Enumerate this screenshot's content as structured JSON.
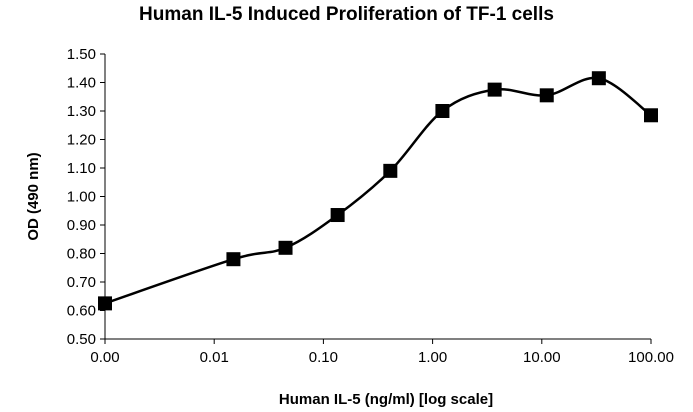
{
  "chart_data": {
    "type": "line",
    "title": "Human IL-5 Induced Proliferation of TF-1 cells",
    "xlabel": "Human IL-5 (ng/ml) [log scale]",
    "ylabel": "OD (490 nm)",
    "x_tick_labels": [
      "0.00",
      "0.01",
      "0.10",
      "1.00",
      "10.00",
      "100.00"
    ],
    "y_tick_labels": [
      "0.50",
      "0.60",
      "0.70",
      "0.80",
      "0.90",
      "1.00",
      "1.10",
      "1.20",
      "1.30",
      "1.40",
      "1.50"
    ],
    "ylim": [
      0.5,
      1.5
    ],
    "x_scale": "log",
    "grid": false,
    "series": [
      {
        "x": [
          0.001,
          0.015,
          0.045,
          0.135,
          0.41,
          1.23,
          3.7,
          11.1,
          33.3,
          100
        ],
        "values": [
          0.625,
          0.78,
          0.82,
          0.935,
          1.09,
          1.3,
          1.375,
          1.355,
          1.415,
          1.285
        ]
      }
    ],
    "colors": {
      "line": "#000000",
      "marker": "#000000"
    },
    "marker": "square"
  }
}
